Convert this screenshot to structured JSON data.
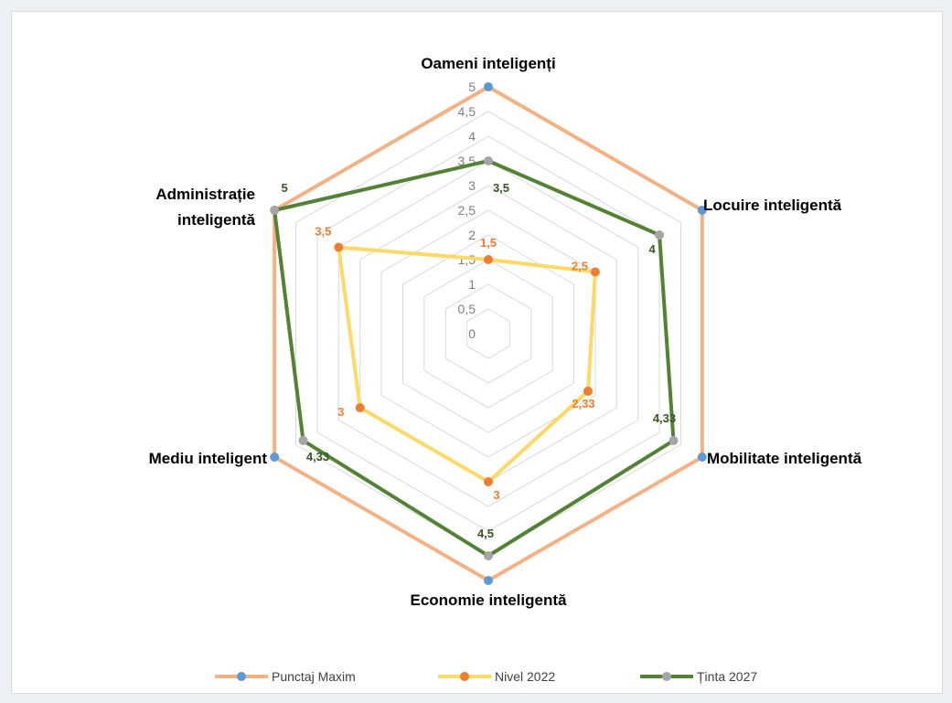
{
  "chart_data": {
    "type": "radar",
    "categories": [
      "Oameni inteligenți",
      "Locuire inteligentă",
      "Mobilitate inteligentă",
      "Economie inteligentă",
      "Mediu inteligent",
      "Administrație inteligentă"
    ],
    "rlim": [
      0,
      5
    ],
    "ticks": [
      "0",
      "0,5",
      "1",
      "1,5",
      "2",
      "2,5",
      "3",
      "3,5",
      "4",
      "4,5",
      "5"
    ],
    "grid": true,
    "legend_position": "bottom",
    "series": [
      {
        "name": "Punctaj Maxim",
        "values": [
          5,
          5,
          5,
          5,
          5,
          5
        ],
        "line_color": "#f4b183",
        "marker_color": "#5b9bd5",
        "show_labels": false
      },
      {
        "name": "Nivel 2022",
        "values": [
          1.5,
          2.5,
          2.33,
          3,
          3,
          3.5
        ],
        "labels": [
          "1,5",
          "2,5",
          "2,33",
          "3",
          "3",
          "3,5"
        ],
        "line_color": "#ffd966",
        "marker_color": "#ed7d31",
        "label_color": "#ed7d31",
        "show_labels": true
      },
      {
        "name": "Ținta 2027",
        "values": [
          3.5,
          4,
          4.33,
          4.5,
          4.33,
          5
        ],
        "labels": [
          "3,5",
          "4",
          "4,33",
          "4,5",
          "4,33",
          "5"
        ],
        "line_color": "#548235",
        "marker_color": "#a5a5a5",
        "label_color": "#375623",
        "show_labels": true
      }
    ]
  }
}
